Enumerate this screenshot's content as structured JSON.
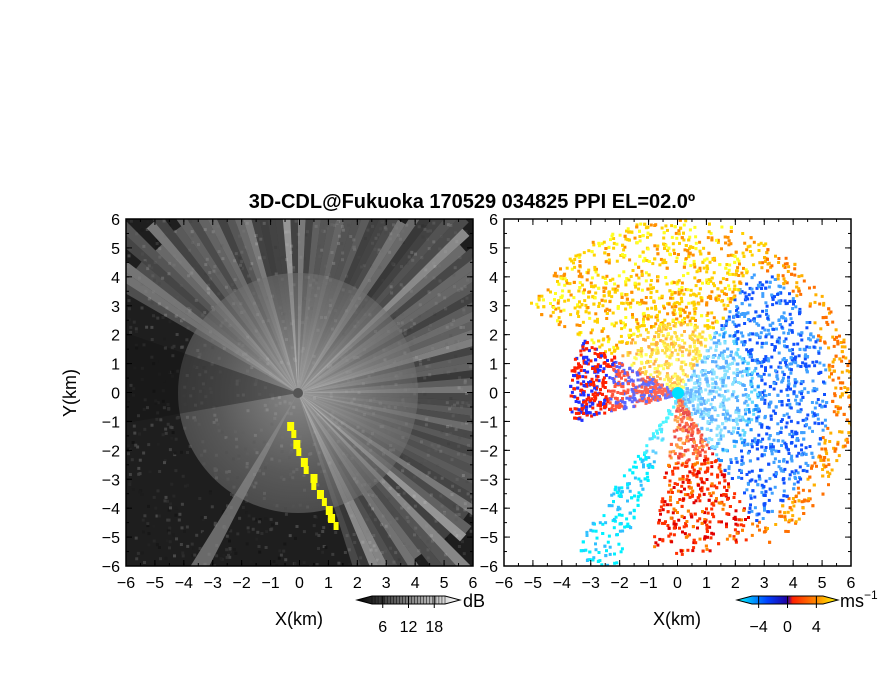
{
  "title": "3D-CDL@Fukuoka 170529 034825 PPI EL=02.0º",
  "chart_data": [
    {
      "type": "heatmap",
      "panel": "left",
      "quantity_unit": "dB",
      "xlabel": "X(km)",
      "ylabel": "Y(km)",
      "xlim": [
        -6,
        6
      ],
      "ylim": [
        -6,
        6
      ],
      "xticks": [
        "−6",
        "−5",
        "−4",
        "−3",
        "−2",
        "−1",
        "0",
        "1",
        "2",
        "3",
        "4",
        "5",
        "6"
      ],
      "yticks": [
        "6",
        "5",
        "4",
        "3",
        "2",
        "1",
        "0",
        "−1",
        "−2",
        "−3",
        "−4",
        "−5",
        "−6"
      ],
      "colorbar": {
        "ticks": [
          "6",
          "12",
          "18"
        ],
        "tick_values": [
          6,
          12,
          18
        ],
        "range": [
          0,
          24
        ],
        "unit": "dB",
        "colors": [
          "#000000",
          "#ffffff"
        ]
      },
      "highlight_color": "#ffff00",
      "background_color": "#1e1e1e"
    },
    {
      "type": "heatmap",
      "panel": "right",
      "quantity_unit": "ms⁻¹",
      "xlabel": "X(km)",
      "ylabel": "",
      "xlim": [
        -6,
        6
      ],
      "ylim": [
        -6,
        6
      ],
      "xticks": [
        "−6",
        "−5",
        "−4",
        "−3",
        "−2",
        "−1",
        "0",
        "1",
        "2",
        "3",
        "4",
        "5",
        "6"
      ],
      "yticks": [
        "6",
        "5",
        "4",
        "3",
        "2",
        "1",
        "0",
        "−1",
        "−2",
        "−3",
        "−4",
        "−5",
        "−6"
      ],
      "colorbar": {
        "ticks": [
          "−4",
          "0",
          "4"
        ],
        "tick_values": [
          -4,
          0,
          4
        ],
        "range": [
          -7,
          7
        ],
        "unit_base": "ms",
        "unit_exp": "−1",
        "colors": [
          "#00ffff",
          "#0050ff",
          "#ff3000",
          "#ff9000",
          "#ffff00"
        ]
      },
      "background_color": "#ffffff"
    }
  ]
}
